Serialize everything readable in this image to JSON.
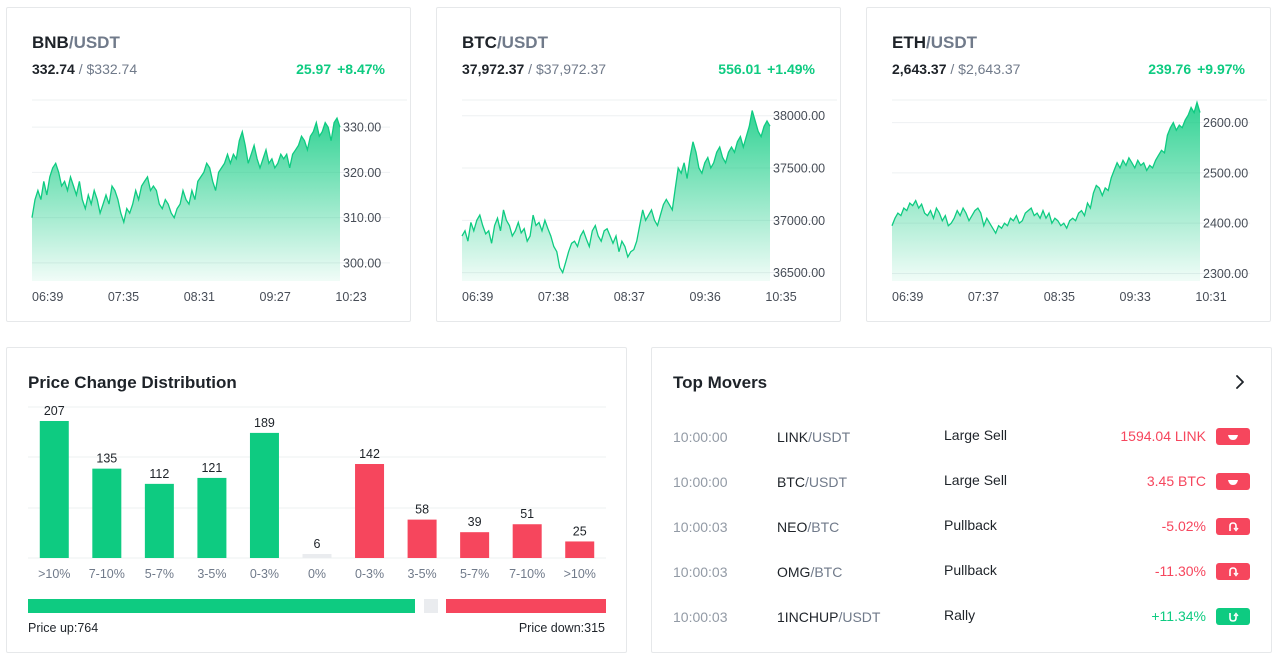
{
  "tickers": [
    {
      "base": "BNB",
      "quote": "/USDT",
      "last": "332.74",
      "sep": " / ",
      "usd": "$332.74",
      "change_abs": "25.97",
      "change_pct": "+8.47%",
      "chart_data": {
        "type": "area",
        "y_ticks": [
          "330.00",
          "320.00",
          "310.00",
          "300.00"
        ],
        "y_tick_values": [
          330,
          320,
          310,
          300
        ],
        "ylim": [
          296,
          336
        ],
        "x_ticks": [
          "06:39",
          "07:35",
          "08:31",
          "09:27",
          "10:23"
        ],
        "values": [
          310,
          314,
          316,
          314,
          318,
          315,
          319,
          321,
          322,
          320,
          317,
          318,
          316,
          319,
          317,
          315,
          318,
          314,
          312,
          315,
          313,
          316,
          314,
          311,
          313,
          315,
          313,
          317,
          316,
          314,
          311,
          309,
          312,
          311,
          313,
          316,
          314,
          317,
          318,
          319,
          316,
          317,
          316,
          313,
          312,
          314,
          313,
          311,
          310,
          312,
          313,
          316,
          314,
          313,
          316,
          314,
          318,
          319,
          320,
          322,
          321,
          318,
          316,
          320,
          321,
          322,
          324,
          322,
          324,
          323,
          327,
          329,
          326,
          322,
          324,
          326,
          323,
          321,
          323,
          325,
          322,
          323,
          321,
          322,
          324,
          323,
          324,
          321,
          324,
          325,
          326,
          328,
          327,
          325,
          328,
          329,
          331,
          328,
          329,
          331,
          330,
          327,
          331,
          332,
          330
        ]
      }
    },
    {
      "base": "BTC",
      "quote": "/USDT",
      "last": "37,972.37",
      "sep": " / ",
      "usd": "$37,972.37",
      "change_abs": "556.01",
      "change_pct": "+1.49%",
      "chart_data": {
        "type": "area",
        "y_ticks": [
          "38000.00",
          "37500.00",
          "37000.00",
          "36500.00"
        ],
        "y_tick_values": [
          38000,
          37500,
          37000,
          36500
        ],
        "ylim": [
          36420,
          38150
        ],
        "x_ticks": [
          "06:39",
          "07:38",
          "08:37",
          "09:36",
          "10:35"
        ],
        "values": [
          36850,
          36900,
          36800,
          36980,
          36900,
          37000,
          37050,
          36950,
          36870,
          36900,
          36780,
          36950,
          37020,
          36900,
          37100,
          37000,
          36950,
          36850,
          36900,
          36980,
          36880,
          36920,
          36800,
          36850,
          37050,
          36950,
          36980,
          36900,
          37000,
          36920,
          36850,
          36750,
          36700,
          36550,
          36500,
          36600,
          36700,
          36780,
          36800,
          36750,
          36850,
          36900,
          36820,
          36750,
          36900,
          36950,
          36850,
          36800,
          36900,
          36920,
          36850,
          36780,
          36850,
          36700,
          36800,
          36750,
          36650,
          36700,
          36720,
          36800,
          36950,
          37100,
          37000,
          37050,
          37100,
          37000,
          36950,
          37050,
          37150,
          37200,
          37150,
          37100,
          37300,
          37500,
          37450,
          37550,
          37400,
          37600,
          37750,
          37650,
          37500,
          37450,
          37550,
          37600,
          37500,
          37550,
          37650,
          37700,
          37600,
          37550,
          37650,
          37700,
          37650,
          37750,
          37800,
          37700,
          37800,
          37900,
          38050,
          37950,
          37850,
          37800,
          37900,
          37950,
          37900
        ]
      }
    },
    {
      "base": "ETH",
      "quote": "/USDT",
      "last": "2,643.37",
      "sep": " / ",
      "usd": "$2,643.37",
      "change_abs": "239.76",
      "change_pct": "+9.97%",
      "chart_data": {
        "type": "area",
        "y_ticks": [
          "2600.00",
          "2500.00",
          "2400.00",
          "2300.00"
        ],
        "y_tick_values": [
          2600,
          2500,
          2400,
          2300
        ],
        "ylim": [
          2285,
          2645
        ],
        "x_ticks": [
          "06:39",
          "07:37",
          "08:35",
          "09:33",
          "10:31"
        ],
        "values": [
          2395,
          2410,
          2420,
          2415,
          2430,
          2425,
          2440,
          2435,
          2445,
          2430,
          2438,
          2420,
          2415,
          2425,
          2410,
          2430,
          2420,
          2405,
          2415,
          2395,
          2400,
          2410,
          2425,
          2415,
          2430,
          2420,
          2405,
          2415,
          2425,
          2430,
          2420,
          2395,
          2410,
          2400,
          2390,
          2380,
          2395,
          2390,
          2400,
          2395,
          2410,
          2405,
          2415,
          2400,
          2405,
          2420,
          2425,
          2430,
          2415,
          2420,
          2410,
          2425,
          2410,
          2420,
          2400,
          2410,
          2405,
          2395,
          2400,
          2390,
          2405,
          2410,
          2405,
          2420,
          2425,
          2415,
          2440,
          2430,
          2460,
          2475,
          2470,
          2455,
          2470,
          2465,
          2490,
          2505,
          2520,
          2510,
          2525,
          2515,
          2530,
          2520,
          2510,
          2525,
          2515,
          2520,
          2505,
          2515,
          2510,
          2525,
          2535,
          2545,
          2540,
          2575,
          2590,
          2600,
          2585,
          2595,
          2590,
          2605,
          2615,
          2630,
          2620,
          2640,
          2620
        ]
      }
    }
  ],
  "distribution": {
    "title": "Price Change Distribution",
    "chart_data": {
      "type": "bar",
      "categories": [
        ">10%",
        "7-10%",
        "5-7%",
        "3-5%",
        "0-3%",
        "0%",
        "0-3%",
        "3-5%",
        "5-7%",
        "7-10%",
        ">10%"
      ],
      "values": [
        207,
        135,
        112,
        121,
        189,
        6,
        142,
        58,
        39,
        51,
        25
      ],
      "value_labels": [
        "207",
        "135",
        "112",
        "121",
        "189",
        "6",
        "142",
        "58",
        "39",
        "51",
        "25"
      ],
      "directions": [
        "up",
        "up",
        "up",
        "up",
        "up",
        "flat",
        "down",
        "down",
        "down",
        "down",
        "down"
      ],
      "ylim": [
        0,
        210
      ]
    },
    "up_count": 764,
    "flat_count": 6,
    "down_count": 315,
    "price_up_label": "Price up:764",
    "price_down_label": "Price down:315",
    "colors": {
      "up": "#0ecb81",
      "down": "#f6465d",
      "flat": "#eaecef"
    }
  },
  "movers": {
    "title": "Top Movers",
    "more_icon": "chevron-right-icon",
    "rows": [
      {
        "time": "10:00:00",
        "base": "LINK",
        "quote": "/USDT",
        "type": "Large Sell",
        "value": "1594.04 LINK",
        "dir": "neg",
        "icon": "large-sell-icon"
      },
      {
        "time": "10:00:00",
        "base": "BTC",
        "quote": "/USDT",
        "type": "Large Sell",
        "value": "3.45 BTC",
        "dir": "neg",
        "icon": "large-sell-icon"
      },
      {
        "time": "10:00:03",
        "base": "NEO",
        "quote": "/BTC",
        "type": "Pullback",
        "value": "-5.02%",
        "dir": "neg",
        "icon": "pullback-icon"
      },
      {
        "time": "10:00:03",
        "base": "OMG",
        "quote": "/BTC",
        "type": "Pullback",
        "value": "-11.30%",
        "dir": "neg",
        "icon": "pullback-icon"
      },
      {
        "time": "10:00:03",
        "base": "1INCHUP",
        "quote": "/USDT",
        "type": "Rally",
        "value": "+11.34%",
        "dir": "pos",
        "icon": "rally-icon"
      }
    ]
  }
}
